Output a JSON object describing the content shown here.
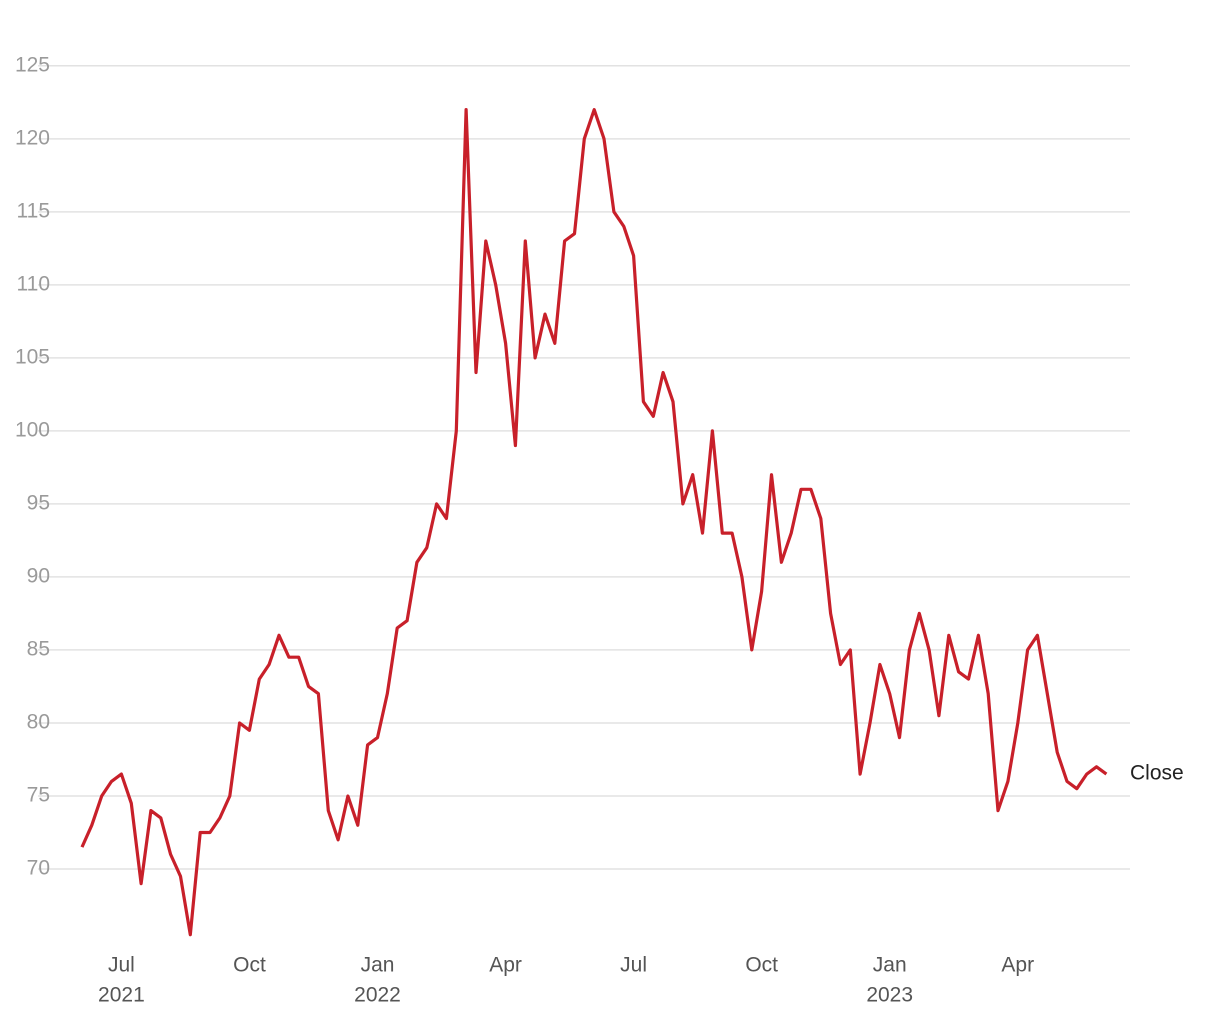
{
  "chart_data": {
    "type": "line",
    "categories": [
      null,
      null,
      null,
      null,
      [
        "Jul",
        "2021"
      ],
      null,
      null,
      null,
      null,
      null,
      null,
      null,
      null,
      null,
      null,
      null,
      null,
      [
        "Oct"
      ],
      null,
      null,
      null,
      null,
      null,
      null,
      null,
      null,
      null,
      null,
      null,
      null,
      [
        "Jan",
        "2022"
      ],
      null,
      null,
      null,
      null,
      null,
      null,
      null,
      null,
      null,
      null,
      null,
      null,
      [
        "Apr"
      ],
      null,
      null,
      null,
      null,
      null,
      null,
      null,
      null,
      null,
      null,
      null,
      null,
      [
        "Jul"
      ],
      null,
      null,
      null,
      null,
      null,
      null,
      null,
      null,
      null,
      null,
      null,
      null,
      [
        "Oct"
      ],
      null,
      null,
      null,
      null,
      null,
      null,
      null,
      null,
      null,
      null,
      null,
      null,
      [
        "Jan",
        "2023"
      ],
      null,
      null,
      null,
      null,
      null,
      null,
      null,
      null,
      null,
      null,
      null,
      null,
      [
        "Apr"
      ],
      null,
      null,
      null,
      null,
      null,
      null,
      null,
      null,
      null
    ],
    "series": [
      {
        "name": "Close",
        "color": "#c8202a",
        "values": [
          71.5,
          73,
          75,
          76,
          76.5,
          74.5,
          69,
          74,
          73.5,
          71,
          69.5,
          65.5,
          72.5,
          72.5,
          73.5,
          75,
          80,
          79.5,
          83,
          84,
          86,
          84.5,
          84.5,
          82.5,
          82,
          74,
          72,
          75,
          73,
          78.5,
          79,
          82,
          86.5,
          87,
          91,
          92,
          95,
          94,
          100,
          122,
          104,
          113,
          110,
          106,
          99,
          113,
          105,
          108,
          106,
          113,
          113.5,
          120,
          122,
          120,
          115,
          114,
          112,
          102,
          101,
          104,
          102,
          95,
          97,
          93,
          100,
          93,
          93,
          90,
          85,
          89,
          97,
          91,
          93,
          96,
          96,
          94,
          87.5,
          84,
          85,
          76.5,
          80,
          84,
          82,
          79,
          85,
          87.5,
          85,
          80.5,
          86,
          83.5,
          83,
          86,
          82,
          74,
          76,
          80,
          85,
          86,
          82,
          78,
          76,
          75.5,
          76.5,
          77,
          76.5
        ]
      }
    ],
    "ylim": [
      65,
      128
    ],
    "yticks": [
      70,
      75,
      80,
      85,
      90,
      95,
      100,
      105,
      110,
      115,
      120,
      125
    ],
    "grid": true
  }
}
